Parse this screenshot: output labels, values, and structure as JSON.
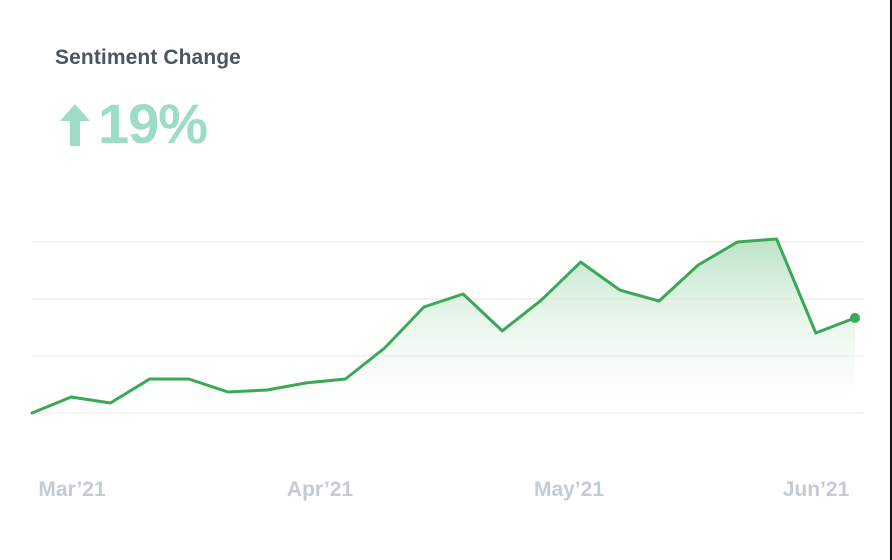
{
  "card": {
    "title": "Sentiment Change",
    "metric": {
      "direction_icon": "arrow-up-icon",
      "value": "19%",
      "color": "#9ddcc5"
    }
  },
  "colors": {
    "line": "#3aa857",
    "fill_top": "#b9e2c3",
    "fill_bottom": "#ffffff",
    "grid": "#f2f2f2",
    "title": "#4b5663",
    "axis_label": "#c3ccd6"
  },
  "chart_data": {
    "type": "area",
    "title": "Sentiment Change",
    "headline_change": "+19%",
    "xlabel": "",
    "ylabel": "",
    "x_tick_labels": [
      "Mar’21",
      "Apr’21",
      "May’21",
      "Jun’21"
    ],
    "x_tick_positions": [
      0,
      8,
      14,
      20
    ],
    "y_gridlines": [
      0,
      25,
      50,
      75
    ],
    "ylim": [
      0,
      75
    ],
    "grid": true,
    "legend": "none",
    "series": [
      {
        "name": "Sentiment",
        "values": [
          0,
          7,
          4.4,
          14.9,
          14.9,
          9.2,
          10.1,
          13.2,
          14.9,
          28.5,
          46.5,
          52.2,
          36.0,
          49.6,
          66.2,
          53.9,
          49.1,
          64.9,
          75.0,
          76.3,
          35.1,
          41.7
        ],
        "last_point_marker": true
      }
    ]
  }
}
